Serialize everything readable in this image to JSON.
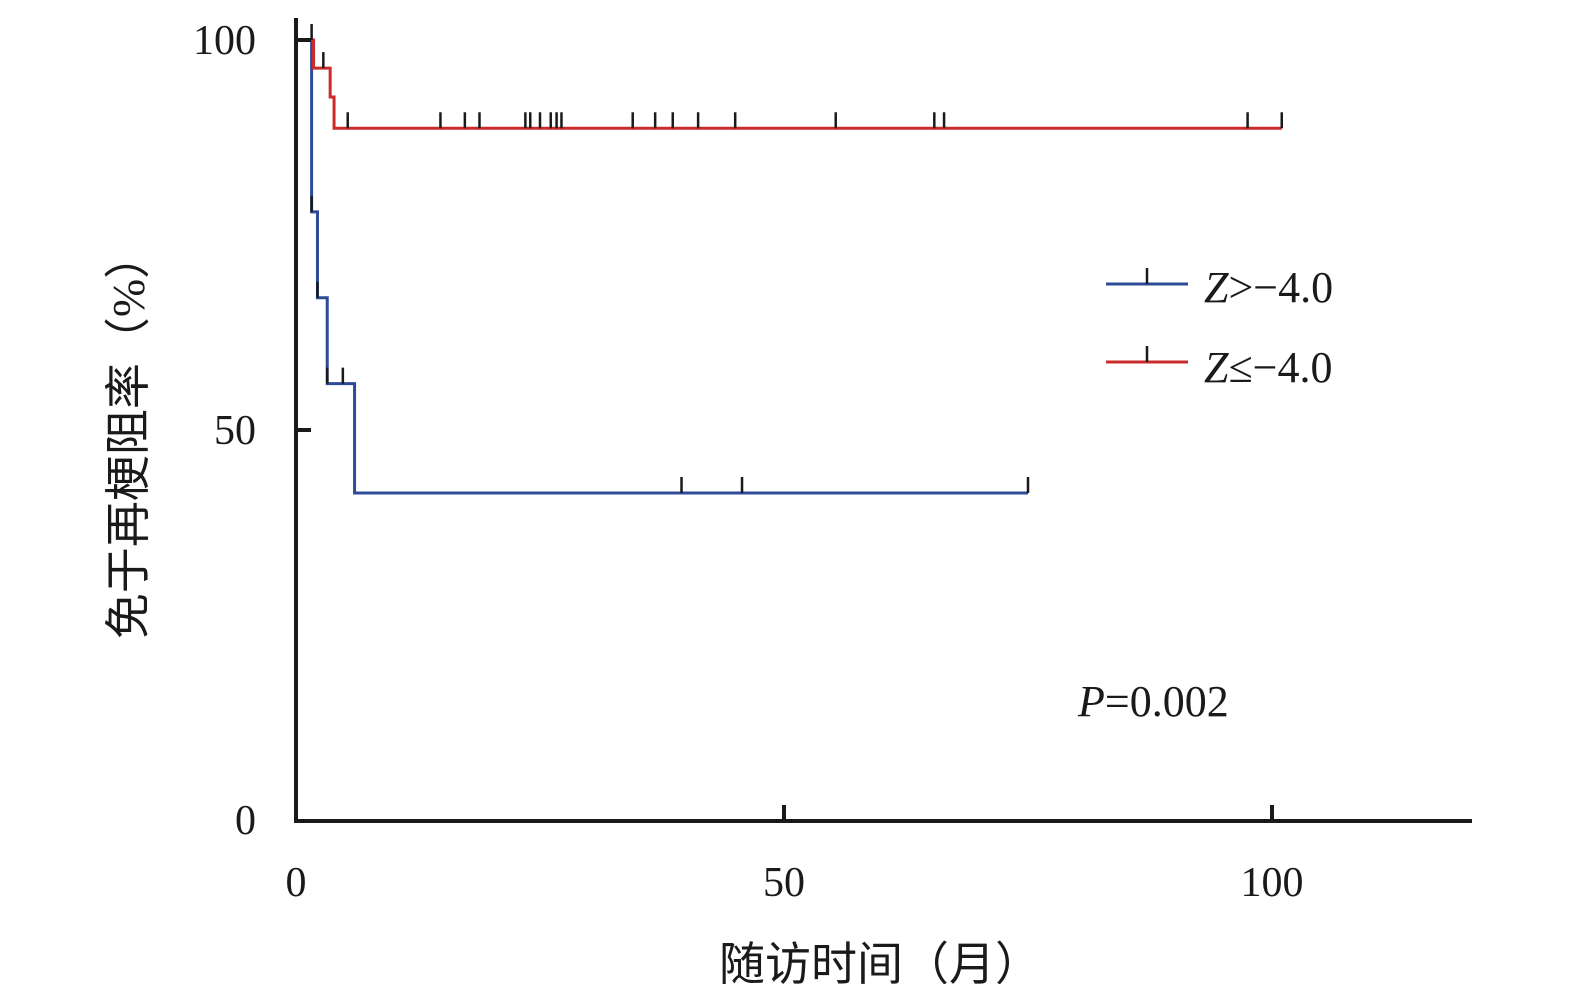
{
  "chart_data": {
    "type": "line",
    "step": true,
    "xlabel": "随访时间（月）",
    "ylabel": "免于再梗阻率（%）",
    "xlim": [
      0,
      120
    ],
    "ylim": [
      0,
      100
    ],
    "xticks": [
      "0",
      "50",
      "100"
    ],
    "yticks": [
      "0",
      "50",
      "100"
    ],
    "grid": false,
    "legend_position": "right",
    "annotation": {
      "italic": "P",
      "text": "=0.002"
    },
    "series": [
      {
        "name": "Z>−4.0",
        "name_italic": "Z",
        "name_rest": ">−4.0",
        "color": "#2e4b9a",
        "x": [
          0,
          1.6,
          2.2,
          3.2,
          6.0,
          75.0
        ],
        "y": [
          100,
          78,
          67,
          56,
          42,
          42
        ],
        "censored_x": [
          1.6,
          2.2,
          3.2,
          4.8,
          39.5,
          45.7,
          75.0
        ]
      },
      {
        "name": "Z≤−4.0",
        "name_italic": "Z",
        "name_rest": "≤−4.0",
        "color": "#cc2b2b",
        "x": [
          0,
          1.8,
          3.5,
          3.9,
          101.0
        ],
        "y": [
          100,
          96.4,
          92.7,
          88.7,
          88.7
        ],
        "censored_x": [
          1.6,
          2.8,
          5.3,
          14.8,
          17.3,
          18.8,
          23.5,
          24.0,
          25.0,
          26.1,
          26.7,
          27.2,
          34.5,
          36.8,
          38.6,
          41.2,
          45.0,
          55.3,
          65.4,
          66.4,
          97.5,
          101.0
        ]
      }
    ]
  }
}
